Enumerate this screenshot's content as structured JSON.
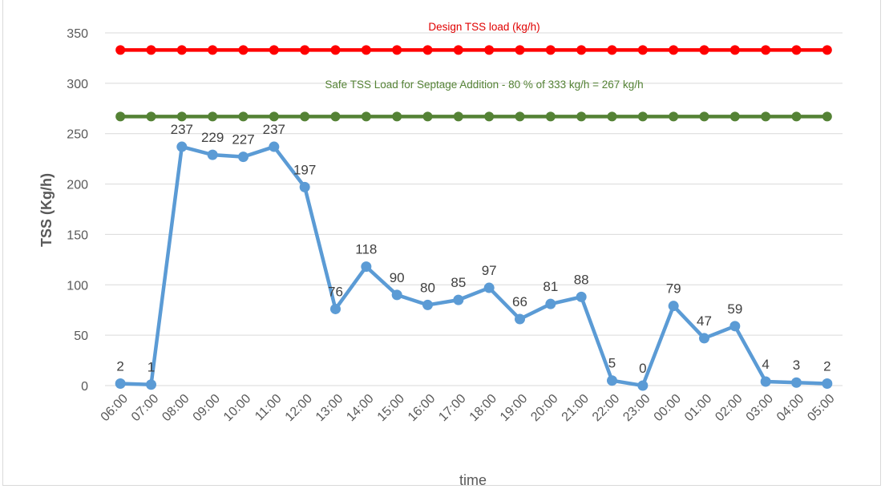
{
  "chart_data": {
    "type": "line",
    "xlabel": "time",
    "ylabel": "TSS (Kg/h)",
    "ylim": [
      0,
      350
    ],
    "yticks": [
      0,
      50,
      100,
      150,
      200,
      250,
      300,
      350
    ],
    "grid": true,
    "categories": [
      "06:00",
      "07:00",
      "08:00",
      "09:00",
      "10:00",
      "11:00",
      "12:00",
      "13:00",
      "14:00",
      "15:00",
      "16:00",
      "17:00",
      "18:00",
      "19:00",
      "20:00",
      "21:00",
      "22:00",
      "23:00",
      "00:00",
      "01:00",
      "02:00",
      "03:00",
      "04:00",
      "05:00"
    ],
    "series": [
      {
        "values": [
          2,
          1,
          237,
          229,
          227,
          237,
          197,
          76,
          118,
          90,
          80,
          85,
          97,
          66,
          81,
          88,
          5,
          0,
          79,
          47,
          59,
          4,
          3,
          2
        ],
        "labels": [
          "2",
          "1",
          "237",
          "229",
          "227",
          "237",
          "197",
          "76",
          "118",
          "90",
          "80",
          "85",
          "97",
          "66",
          "81",
          "88",
          "5",
          "0",
          "79",
          "47",
          "59",
          "4",
          "3",
          "2"
        ],
        "color": "#5B9BD5"
      },
      {
        "value": 333,
        "annotation": "Design TSS load (kg/h)",
        "color": "#FF0000",
        "annotation_color": "#E00000"
      },
      {
        "value": 267,
        "annotation": "Safe TSS Load for Septage Addition - 80 % of 333 kg/h = 267 kg/h",
        "color": "#548235",
        "annotation_color": "#548235"
      }
    ],
    "colors": {
      "gridline": "#D9D9D9",
      "axis_text": "#595959",
      "data_label": "#404040"
    }
  }
}
